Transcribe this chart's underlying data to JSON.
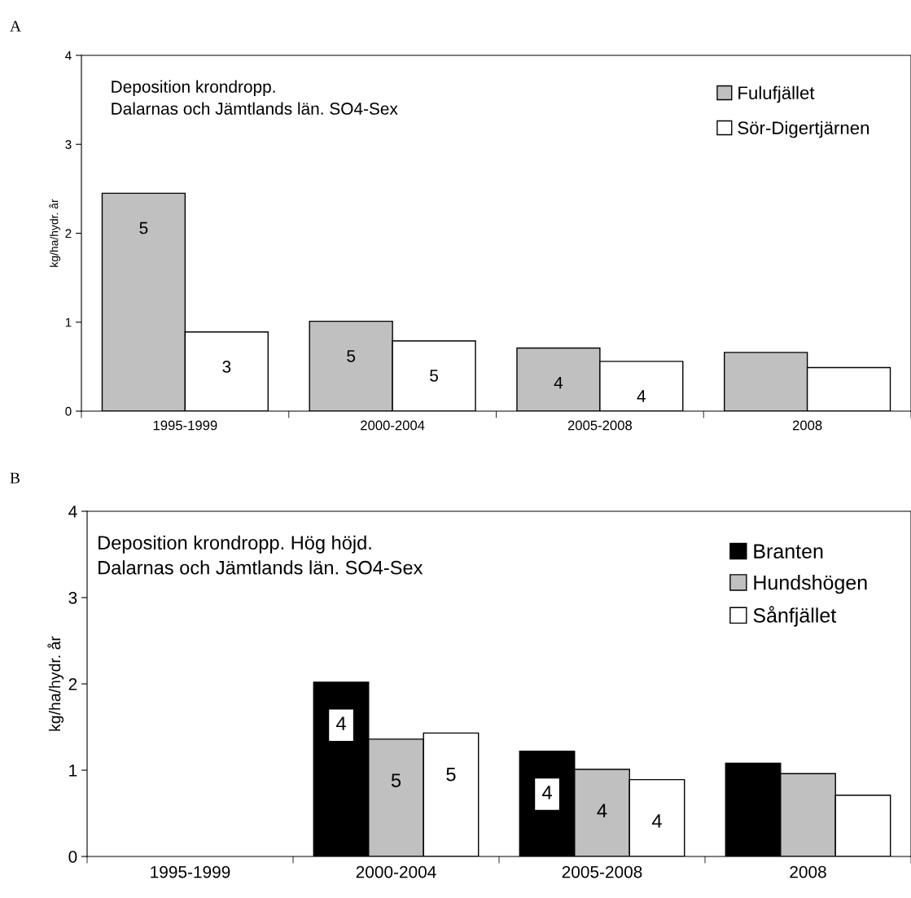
{
  "chart_data": [
    {
      "type": "bar",
      "title": "Deposition krondropp.\nDalarnas och Jämtlands län. SO4-Sex",
      "ylabel": "kg/ha/hydr. år",
      "annotations": [
        "A",
        "5",
        "3",
        "5",
        "5",
        "4",
        "4"
      ],
      "categories": [
        "1995-1999",
        "2000-2004",
        "2005-2008",
        "2008"
      ],
      "series": [
        {
          "name": "Fulufjället",
          "color": "#c0c0c0",
          "values": [
            2.45,
            1.01,
            0.71,
            0.66
          ]
        },
        {
          "name": "Sör-Digertjärnen",
          "color": "#ffffff",
          "values": [
            0.89,
            0.79,
            0.56,
            0.49
          ]
        }
      ],
      "ylim": [
        0,
        4
      ],
      "yticks": [
        0,
        1,
        2,
        3,
        4
      ],
      "grid": false,
      "legend": "top right"
    },
    {
      "type": "bar",
      "title": "Deposition krondropp. Hög höjd.\nDalarnas och Jämtlands län. SO4-Sex",
      "ylabel": "kg/ha/hydr. år",
      "annotations": [
        "B",
        "4",
        "5",
        "5",
        "4",
        "4",
        "4"
      ],
      "categories": [
        "1995-1999",
        "2000-2004",
        "2005-2008",
        "2008"
      ],
      "series": [
        {
          "name": "Branten",
          "color": "#000000",
          "values": [
            null,
            2.02,
            1.22,
            1.08
          ]
        },
        {
          "name": "Hundshögen",
          "color": "#c0c0c0",
          "values": [
            null,
            1.36,
            1.01,
            0.96
          ]
        },
        {
          "name": "Sånfjället",
          "color": "#ffffff",
          "values": [
            null,
            1.43,
            0.89,
            0.71
          ]
        }
      ],
      "ylim": [
        0,
        4
      ],
      "yticks": [
        0,
        1,
        2,
        3,
        4
      ],
      "grid": false,
      "legend": "top right"
    }
  ]
}
